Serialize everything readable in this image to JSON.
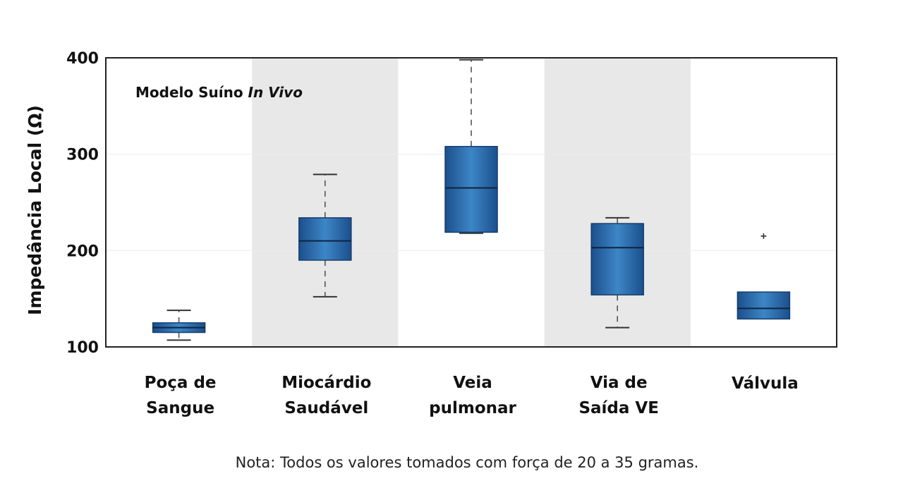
{
  "chart_data": {
    "type": "box",
    "ylabel": "Impedância Local (Ω)",
    "ylim": [
      100,
      400
    ],
    "yticks": [
      100,
      200,
      300,
      400
    ],
    "annotation": {
      "prefix": "Modelo Suíno ",
      "emphasis": "In Vivo"
    },
    "note": "Nota: Todos os valores tomados com força de 20 a 35 gramas.",
    "shaded_bands": [
      1,
      3
    ],
    "grid_y": [
      200,
      300
    ],
    "categories": [
      {
        "label": [
          "Poça de",
          "Sangue"
        ],
        "min": 107,
        "q1": 115,
        "median": 120,
        "q3": 125,
        "max": 138,
        "outliers": []
      },
      {
        "label": [
          "Miocárdio",
          "Saudável"
        ],
        "min": 152,
        "q1": 190,
        "median": 210,
        "q3": 234,
        "max": 279,
        "outliers": []
      },
      {
        "label": [
          "Veia",
          "pulmonar"
        ],
        "min": 218,
        "q1": 219,
        "median": 265,
        "q3": 308,
        "max": 398,
        "outliers": []
      },
      {
        "label": [
          "Via de",
          "Saída VE"
        ],
        "min": 120,
        "q1": 154,
        "median": 203,
        "q3": 228,
        "max": 234,
        "outliers": []
      },
      {
        "label": [
          "Válvula"
        ],
        "min": 129,
        "q1": 129,
        "median": 140,
        "q3": 157,
        "max": 157,
        "outliers": [
          215
        ]
      }
    ],
    "colors": {
      "box_dark": "#1c4f8c",
      "box_light": "#3d86c6",
      "band": "#e8e8e8",
      "whisker": "#555555"
    }
  }
}
